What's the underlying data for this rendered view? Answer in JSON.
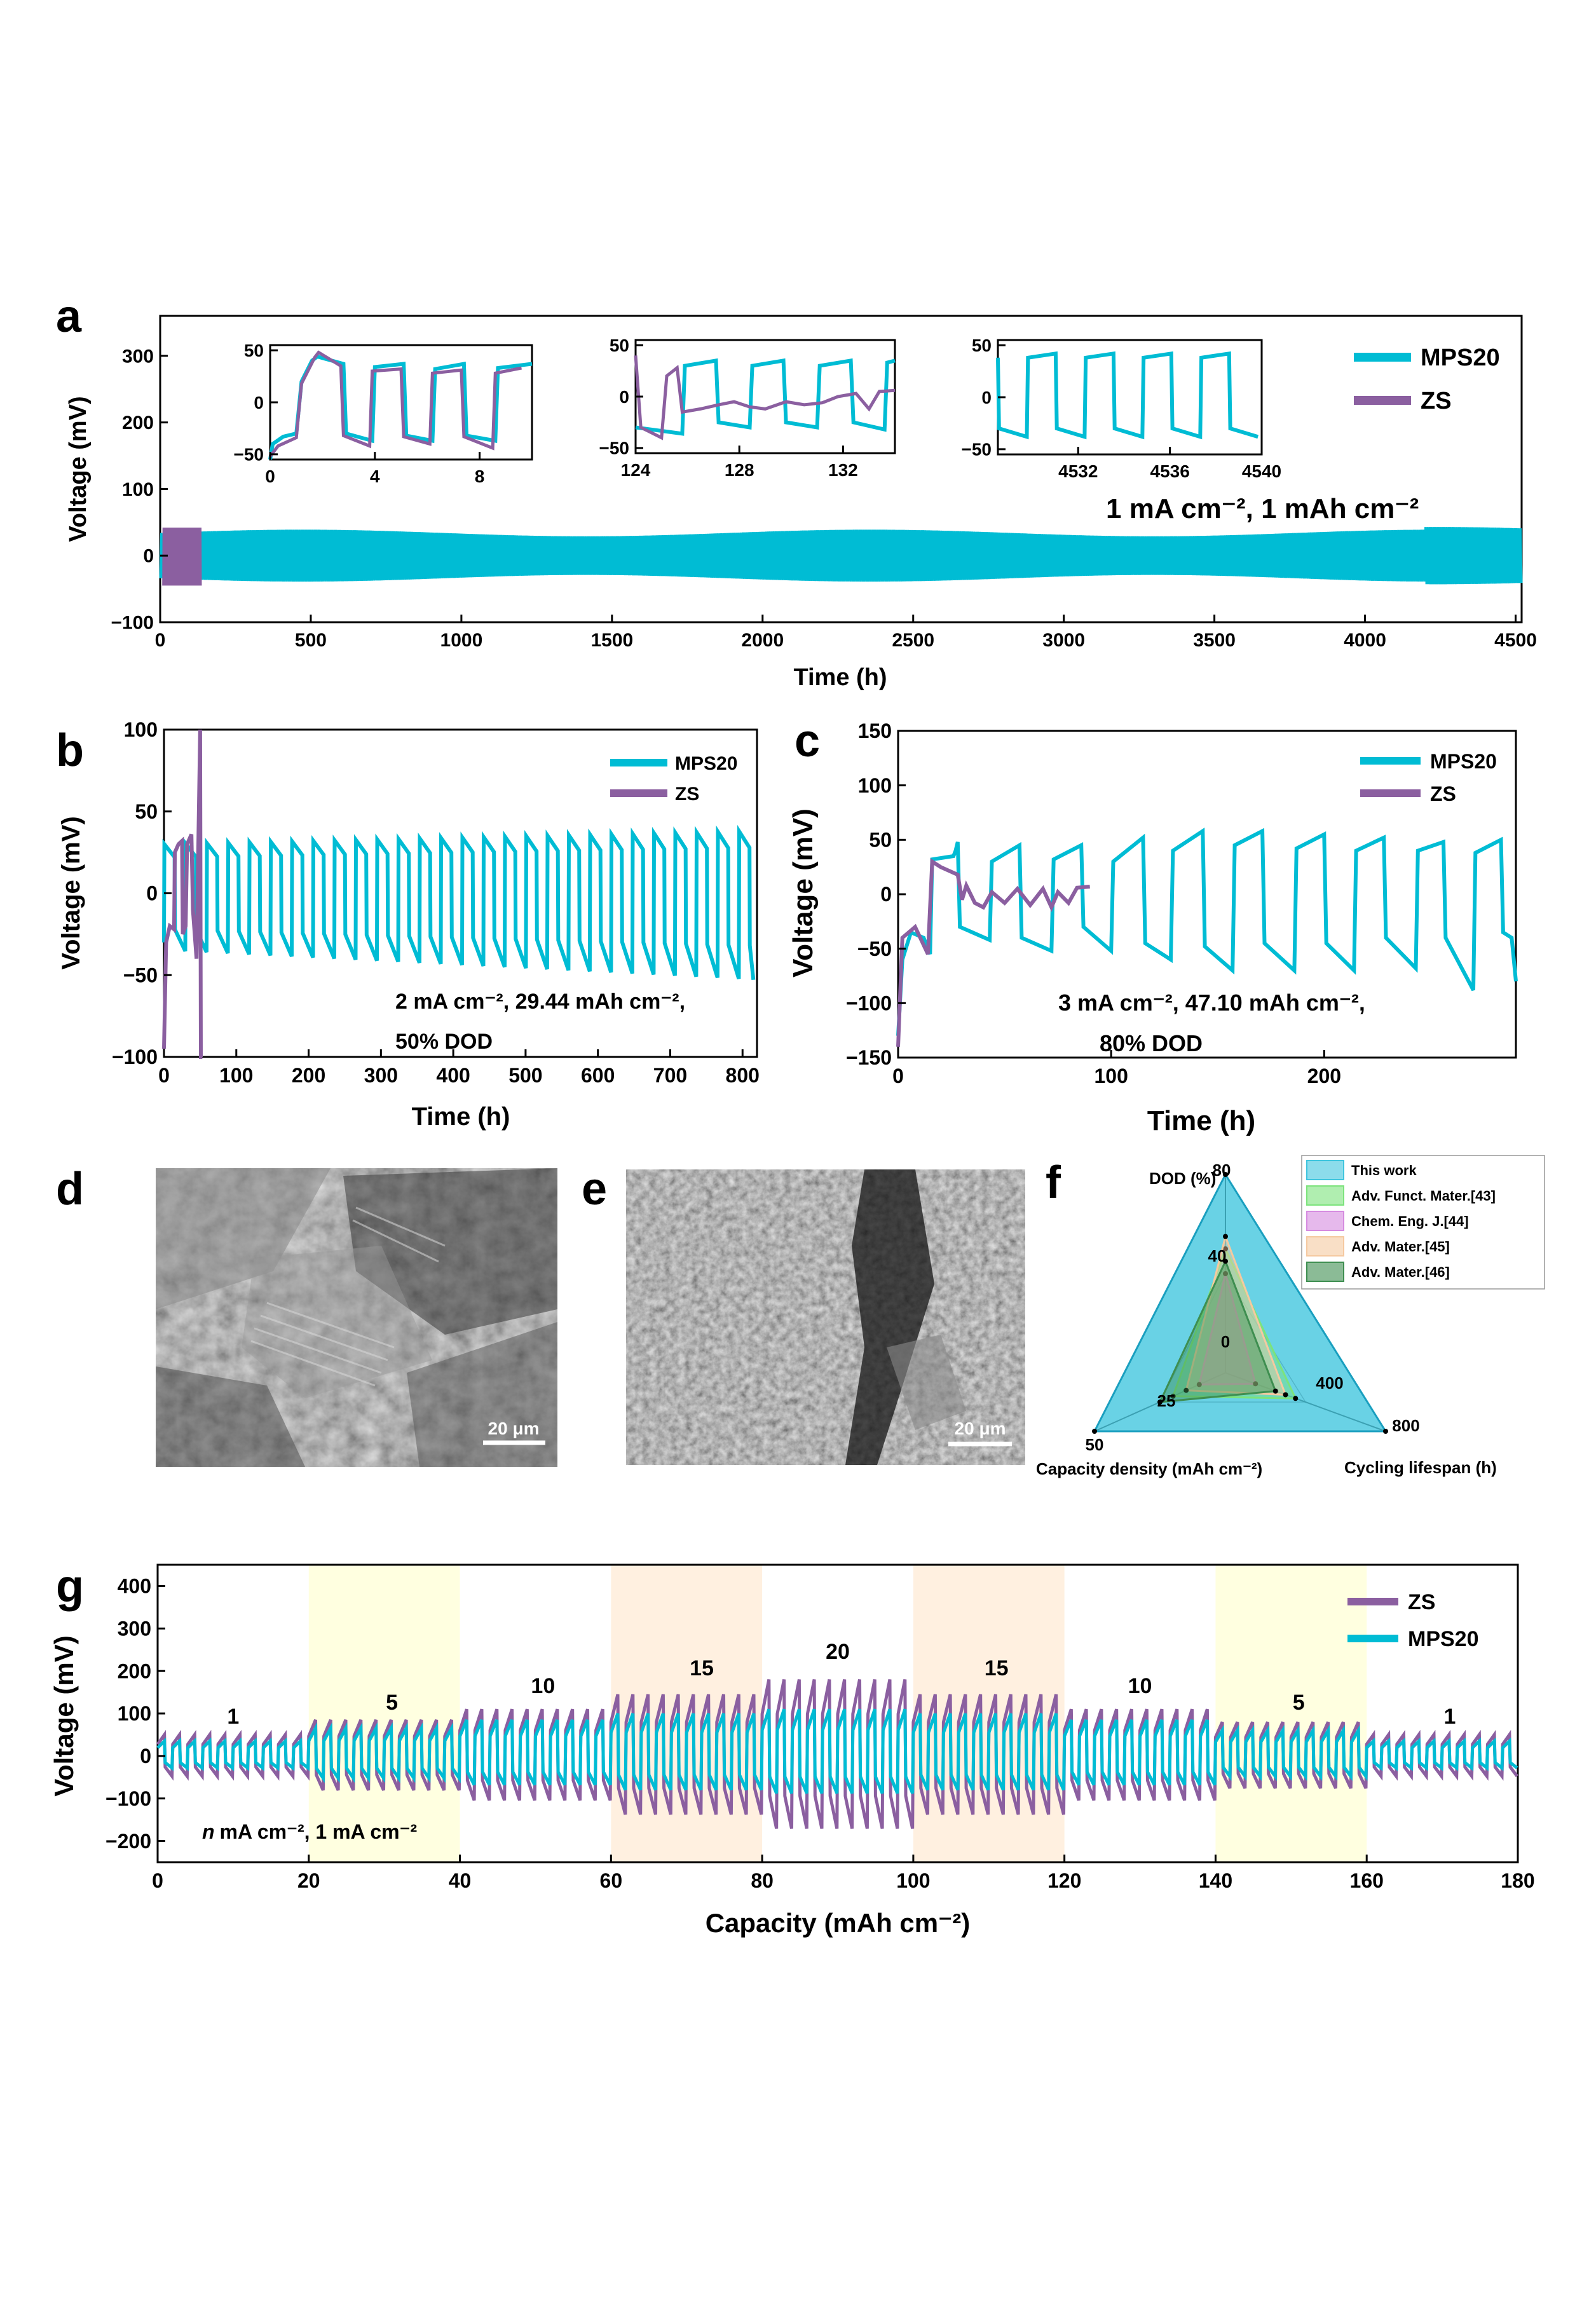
{
  "colors": {
    "MPS20": "#00BCD4",
    "ZS": "#8B5FA0",
    "yellow_band": "#FFFFE0",
    "peach_band": "#FFF0E0"
  },
  "panel_letters": [
    "a",
    "b",
    "c",
    "d",
    "e",
    "f",
    "g"
  ],
  "panel_a": {
    "legend": [
      "MPS20",
      "ZS"
    ],
    "condition": "1 mA cm⁻²,  1 mAh cm⁻²",
    "xlabel": "Time (h)",
    "ylabel": "Voltage (mV)",
    "xticks": [
      "0",
      "500",
      "1000",
      "1500",
      "2000",
      "2500",
      "3000",
      "3500",
      "4000",
      "4500"
    ],
    "yticks": [
      "−100",
      "0",
      "100",
      "200",
      "300"
    ],
    "inset1_xticks": [
      "0",
      "4",
      "8"
    ],
    "inset1_yticks": [
      "−50",
      "0",
      "50"
    ],
    "inset2_xticks": [
      "124",
      "128",
      "132"
    ],
    "inset2_yticks": [
      "−50",
      "0",
      "50"
    ],
    "inset3_xticks": [
      "4532",
      "4536",
      "4540"
    ],
    "inset3_yticks": [
      "−50",
      "0",
      "50"
    ]
  },
  "panel_b": {
    "legend": [
      "MPS20",
      "ZS"
    ],
    "condition_line1": "2 mA cm⁻², 29.44 mAh cm⁻²,",
    "condition_line2": "50% DOD",
    "xlabel": "Time (h)",
    "ylabel": "Voltage (mV)",
    "xticks": [
      "0",
      "100",
      "200",
      "300",
      "400",
      "500",
      "600",
      "700",
      "800"
    ],
    "yticks": [
      "−100",
      "−50",
      "0",
      "50",
      "100"
    ]
  },
  "panel_c": {
    "legend": [
      "MPS20",
      "ZS"
    ],
    "condition_line1": "3 mA cm⁻², 47.10 mAh cm⁻²,",
    "condition_line2": "80% DOD",
    "xlabel": "Time (h)",
    "ylabel": "Voltage (mV)",
    "xticks": [
      "0",
      "100",
      "200"
    ],
    "yticks": [
      "−150",
      "−100",
      "−50",
      "0",
      "50",
      "100",
      "150"
    ]
  },
  "panel_d": {
    "scalebar": "20 μm"
  },
  "panel_e": {
    "scalebar": "20 μm"
  },
  "panel_f": {
    "axis_dod": "DOD (%)",
    "axis_capacity": "Capacity density (mAh cm⁻²)",
    "axis_lifespan": "Cycling lifespan (h)",
    "dod_ticks": [
      "80",
      "40",
      "0"
    ],
    "cap_ticks": [
      "25",
      "50"
    ],
    "life_ticks": [
      "400",
      "800"
    ],
    "legend": [
      "This work",
      "Adv. Funct. Mater.[43]",
      "Chem. Eng. J.[44]",
      "Adv. Mater.[45]",
      "Adv. Mater.[46]"
    ],
    "legend_colors": [
      "#3FC5DE",
      "#7CE37C",
      "#D68BE0",
      "#F5C9A0",
      "#3E8E50"
    ]
  },
  "panel_g": {
    "legend": [
      "ZS",
      "MPS20"
    ],
    "condition": "mA cm⁻², 1 mA cm⁻²",
    "condition_var": "n",
    "xlabel": "Capacity (mAh cm⁻²)",
    "ylabel": "Voltage (mV)",
    "xticks": [
      "0",
      "20",
      "40",
      "60",
      "80",
      "100",
      "120",
      "140",
      "160",
      "180"
    ],
    "yticks": [
      "−200",
      "−100",
      "0",
      "100",
      "200",
      "300",
      "400"
    ],
    "rate_labels": [
      "1",
      "5",
      "10",
      "15",
      "20",
      "15",
      "10",
      "5",
      "1"
    ]
  },
  "chart_data": [
    {
      "panel": "a",
      "type": "line",
      "xlabel": "Time (h)",
      "ylabel": "Voltage (mV)",
      "xlim": [
        0,
        4520
      ],
      "ylim": [
        -100,
        360
      ],
      "series": [
        {
          "name": "MPS20",
          "description_range": [
            0,
            4520
          ],
          "amplitude_mV": [
            -40,
            40
          ]
        },
        {
          "name": "ZS",
          "description_range": [
            0,
            140
          ],
          "amplitude_mV": [
            -45,
            45
          ]
        }
      ],
      "insets": [
        {
          "xlim": [
            0,
            10
          ],
          "ylim": [
            -55,
            55
          ]
        },
        {
          "xlim": [
            124,
            134
          ],
          "ylim": [
            -55,
            55
          ]
        },
        {
          "xlim": [
            4528,
            4540
          ],
          "ylim": [
            -55,
            55
          ]
        }
      ]
    },
    {
      "panel": "b",
      "type": "line",
      "xlabel": "Time (h)",
      "ylabel": "Voltage (mV)",
      "xlim": [
        0,
        820
      ],
      "ylim": [
        -100,
        100
      ],
      "series": [
        {
          "name": "MPS20",
          "plateau_mV": [
            -35,
            30
          ],
          "cycle_h": 29.44,
          "end_h": 815
        },
        {
          "name": "ZS",
          "end_h": 55,
          "failure_h": 50
        }
      ]
    },
    {
      "panel": "c",
      "type": "line",
      "xlabel": "Time (h)",
      "ylabel": "Voltage (mV)",
      "xlim": [
        0,
        290
      ],
      "ylim": [
        -150,
        150
      ],
      "series": [
        {
          "name": "MPS20",
          "plateau_mV": [
            -45,
            45
          ],
          "cycle_h": 31.4,
          "end_h": 290
        },
        {
          "name": "ZS",
          "plateau_mV": [
            -10,
            8
          ],
          "end_h": 90
        }
      ]
    },
    {
      "panel": "f",
      "type": "radar",
      "axes": [
        "DOD (%)",
        "Capacity density (mAh cm⁻²)",
        "Cycling lifespan (h)"
      ],
      "axis_max": [
        80,
        50,
        800
      ],
      "series": [
        {
          "name": "This work",
          "values": [
            80,
            50,
            800
          ]
        },
        {
          "name": "Adv. Funct. Mater.[43]",
          "values": [
            50,
            20,
            350
          ]
        },
        {
          "name": "Chem. Eng. J.[44]",
          "values": [
            40,
            10,
            150
          ]
        },
        {
          "name": "Adv. Mater.[45]",
          "values": [
            55,
            15,
            300
          ]
        },
        {
          "name": "Adv. Mater.[46]",
          "values": [
            45,
            25,
            250
          ]
        }
      ]
    },
    {
      "panel": "g",
      "type": "line",
      "xlabel": "Capacity (mAh cm⁻²)",
      "ylabel": "Voltage (mV)",
      "xlim": [
        0,
        180
      ],
      "ylim": [
        -250,
        450
      ],
      "segments": [
        {
          "range": [
            0,
            20
          ],
          "rate": 1,
          "MPS20": 35,
          "ZS": 50
        },
        {
          "range": [
            20,
            40
          ],
          "rate": 5,
          "MPS20": 65,
          "ZS": 85
        },
        {
          "range": [
            40,
            60
          ],
          "rate": 10,
          "MPS20": 85,
          "ZS": 110
        },
        {
          "range": [
            60,
            80
          ],
          "rate": 15,
          "MPS20": 100,
          "ZS": 145
        },
        {
          "range": [
            80,
            100
          ],
          "rate": 20,
          "MPS20": 110,
          "ZS": 180
        },
        {
          "range": [
            100,
            120
          ],
          "rate": 15,
          "MPS20": 100,
          "ZS": 145
        },
        {
          "range": [
            120,
            140
          ],
          "rate": 10,
          "MPS20": 85,
          "ZS": 110
        },
        {
          "range": [
            140,
            160
          ],
          "rate": 5,
          "MPS20": 60,
          "ZS": 80
        },
        {
          "range": [
            160,
            180
          ],
          "rate": 1,
          "MPS20": 35,
          "ZS": 50
        }
      ]
    }
  ]
}
